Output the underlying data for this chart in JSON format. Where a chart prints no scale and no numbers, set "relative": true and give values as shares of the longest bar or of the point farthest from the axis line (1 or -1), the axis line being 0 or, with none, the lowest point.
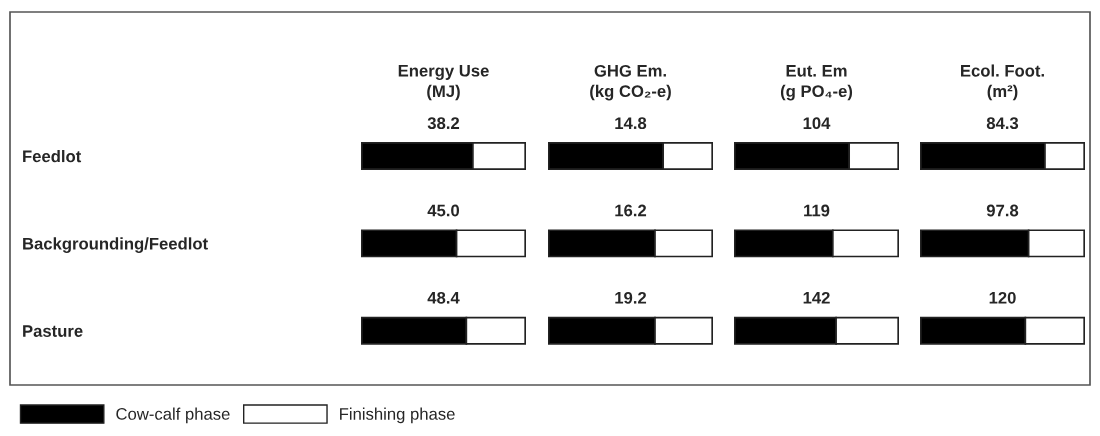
{
  "chart_data": [
    {
      "type": "bar",
      "title": "Energy Use\n(MJ)",
      "orientation": "horizontal",
      "stacked": true,
      "relative": true,
      "categories": [
        "Feedlot",
        "Backgrounding/Feedlot",
        "Pasture"
      ],
      "tick_labels": "y",
      "legend": "bottom",
      "series": [
        {
          "name": "Cow-calf phase",
          "color": "#000000",
          "values": [
            0.68,
            0.58,
            0.64
          ]
        },
        {
          "name": "Finishing phase",
          "color": "#ffffff",
          "values": [
            0.32,
            0.42,
            0.36
          ]
        }
      ],
      "annotations": [
        "38.2",
        "45.0",
        "48.4"
      ]
    },
    {
      "type": "bar",
      "title": "GHG Em.\n(kg CO₂-e)",
      "orientation": "horizontal",
      "stacked": true,
      "relative": true,
      "categories": [
        null,
        null,
        null
      ],
      "tick_labels": false,
      "series": [
        {
          "color": "#000000",
          "values": [
            0.7,
            0.65,
            0.65
          ]
        },
        {
          "color": "#ffffff",
          "values": [
            0.3,
            0.35,
            0.35
          ]
        }
      ],
      "annotations": [
        "14.8",
        "16.2",
        "19.2"
      ]
    },
    {
      "type": "bar",
      "title": "Eut. Em\n(g PO₄-e)",
      "orientation": "horizontal",
      "stacked": true,
      "relative": true,
      "categories": [
        null,
        null,
        null
      ],
      "tick_labels": false,
      "series": [
        {
          "color": "#000000",
          "values": [
            0.7,
            0.6,
            0.62
          ]
        },
        {
          "color": "#ffffff",
          "values": [
            0.3,
            0.4,
            0.38
          ]
        }
      ],
      "annotations": [
        "104",
        "119",
        "142"
      ]
    },
    {
      "type": "bar",
      "title": "Ecol. Foot.\n(m²)",
      "orientation": "horizontal",
      "stacked": true,
      "relative": true,
      "categories": [
        null,
        null,
        null
      ],
      "tick_labels": false,
      "series": [
        {
          "color": "#000000",
          "values": [
            0.76,
            0.66,
            0.64
          ]
        },
        {
          "color": "#ffffff",
          "values": [
            0.24,
            0.34,
            0.36
          ]
        }
      ],
      "annotations": [
        "84.3",
        "97.8",
        "120"
      ]
    }
  ]
}
